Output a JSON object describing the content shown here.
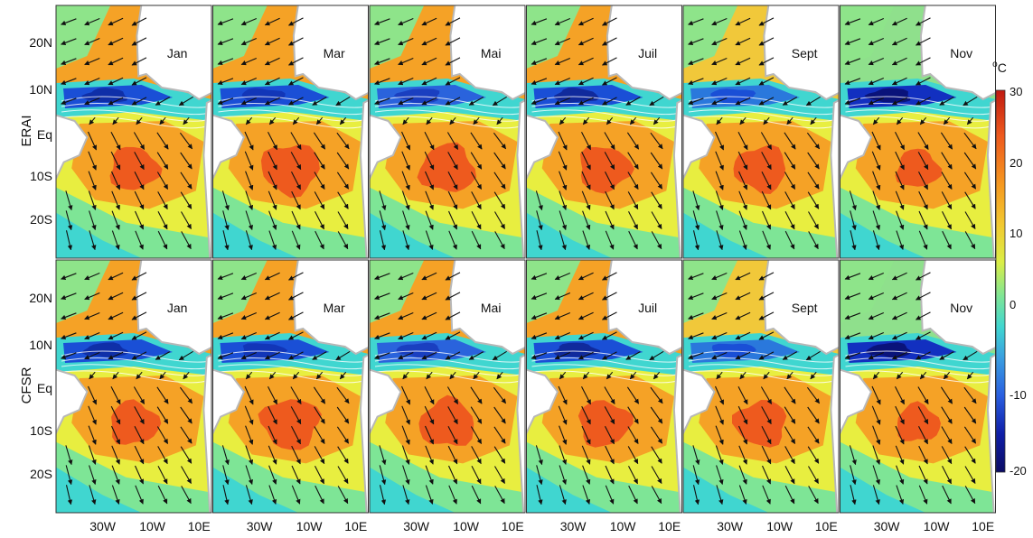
{
  "rows": [
    {
      "label": "ERAI"
    },
    {
      "label": "CFSR"
    }
  ],
  "months": [
    "Jan",
    "Mar",
    "Mai",
    "Juil",
    "Sept",
    "Nov"
  ],
  "lat_ticks": [
    "20N",
    "10N",
    "Eq",
    "10S",
    "20S"
  ],
  "lon_ticks": [
    "30W",
    "10W",
    "10E"
  ],
  "colorbar": {
    "unit": "°C",
    "unit_sup": "o",
    "unit_letter": "C",
    "ticks": [
      "30",
      "20",
      "10",
      "0",
      "-10",
      "-20"
    ],
    "min": -20,
    "max": 30,
    "colors": [
      "#10106e",
      "#1a2fbf",
      "#2f6fe0",
      "#3fb0d8",
      "#40d8c0",
      "#8ee48a",
      "#e8ee40",
      "#f7a020",
      "#ee5a1e",
      "#c01e12"
    ]
  },
  "colors": {
    "land": "#ffffff",
    "coast": "#b8b8b8",
    "arrow": "#111111",
    "isoline": "#ffffff"
  }
}
